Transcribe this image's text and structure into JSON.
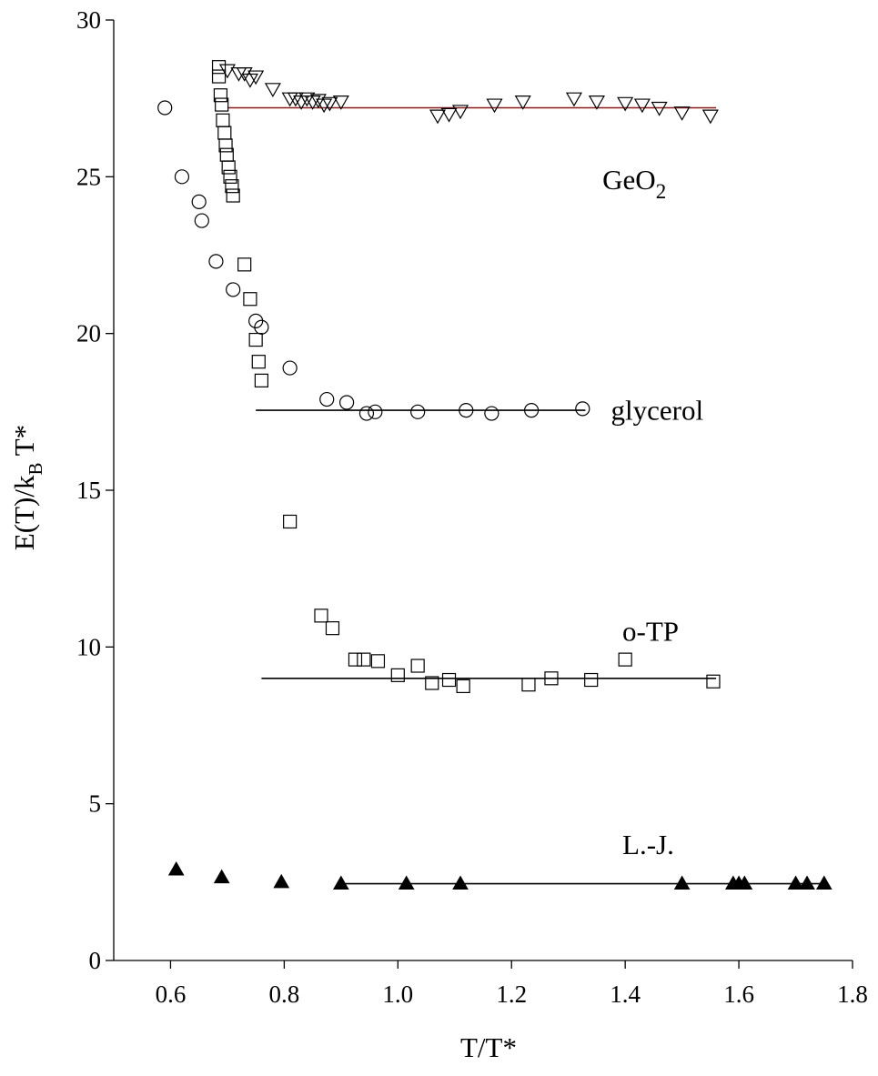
{
  "chart_data": {
    "type": "scatter",
    "title": "",
    "xlabel": "T/T*",
    "ylabel": "E(T)/k",
    "ylabel_sub": "B",
    "ylabel_tail": " T*",
    "xlim": [
      0.5,
      1.8
    ],
    "ylim": [
      0,
      30
    ],
    "xticks": [
      "0.6",
      "0.8",
      "1.0",
      "1.2",
      "1.4",
      "1.6",
      "1.8"
    ],
    "yticks": [
      "0",
      "5",
      "10",
      "15",
      "20",
      "25",
      "30"
    ],
    "grid": false,
    "series": [
      {
        "name": "GeO2",
        "label_main": "GeO",
        "label_sub": "2",
        "marker": "triangle-down-open",
        "fit": {
          "x": [
            0.7,
            1.56
          ],
          "y": 27.2,
          "color": "#8b1a1a"
        },
        "points": [
          [
            0.7,
            28.4
          ],
          [
            0.72,
            28.3
          ],
          [
            0.73,
            28.3
          ],
          [
            0.74,
            28.1
          ],
          [
            0.75,
            28.2
          ],
          [
            0.78,
            27.8
          ],
          [
            0.81,
            27.5
          ],
          [
            0.82,
            27.5
          ],
          [
            0.83,
            27.4
          ],
          [
            0.84,
            27.5
          ],
          [
            0.85,
            27.4
          ],
          [
            0.86,
            27.45
          ],
          [
            0.87,
            27.3
          ],
          [
            0.88,
            27.35
          ],
          [
            0.9,
            27.4
          ],
          [
            1.07,
            26.95
          ],
          [
            1.09,
            27.0
          ],
          [
            1.11,
            27.1
          ],
          [
            1.17,
            27.3
          ],
          [
            1.22,
            27.4
          ],
          [
            1.31,
            27.5
          ],
          [
            1.35,
            27.4
          ],
          [
            1.4,
            27.35
          ],
          [
            1.43,
            27.3
          ],
          [
            1.46,
            27.2
          ],
          [
            1.5,
            27.05
          ],
          [
            1.55,
            26.95
          ]
        ]
      },
      {
        "name": "glycerol",
        "label_main": "glycerol",
        "marker": "circle-open",
        "fit": {
          "x": [
            0.75,
            1.33
          ],
          "y": 17.55,
          "color": "#000000"
        },
        "points": [
          [
            0.59,
            27.2
          ],
          [
            0.62,
            25.0
          ],
          [
            0.65,
            24.2
          ],
          [
            0.655,
            23.6
          ],
          [
            0.68,
            22.3
          ],
          [
            0.71,
            21.4
          ],
          [
            0.75,
            20.4
          ],
          [
            0.76,
            20.2
          ],
          [
            0.81,
            18.9
          ],
          [
            0.875,
            17.9
          ],
          [
            0.91,
            17.8
          ],
          [
            0.945,
            17.45
          ],
          [
            0.96,
            17.5
          ],
          [
            1.035,
            17.5
          ],
          [
            1.12,
            17.55
          ],
          [
            1.165,
            17.45
          ],
          [
            1.235,
            17.55
          ],
          [
            1.325,
            17.6
          ]
        ]
      },
      {
        "name": "o-TP",
        "label_main": "o-TP",
        "marker": "square-open",
        "fit": {
          "x": [
            0.76,
            1.56
          ],
          "y": 9.0,
          "color": "#000000"
        },
        "points": [
          [
            0.685,
            28.5
          ],
          [
            0.685,
            28.2
          ],
          [
            0.688,
            27.6
          ],
          [
            0.69,
            27.3
          ],
          [
            0.692,
            26.8
          ],
          [
            0.695,
            26.4
          ],
          [
            0.697,
            26.0
          ],
          [
            0.699,
            25.7
          ],
          [
            0.702,
            25.3
          ],
          [
            0.705,
            25.0
          ],
          [
            0.708,
            24.7
          ],
          [
            0.71,
            24.4
          ],
          [
            0.73,
            22.2
          ],
          [
            0.74,
            21.1
          ],
          [
            0.75,
            19.8
          ],
          [
            0.755,
            19.1
          ],
          [
            0.76,
            18.5
          ],
          [
            0.81,
            14.0
          ],
          [
            0.865,
            11.0
          ],
          [
            0.885,
            10.6
          ],
          [
            0.925,
            9.6
          ],
          [
            0.94,
            9.6
          ],
          [
            0.965,
            9.55
          ],
          [
            1.0,
            9.1
          ],
          [
            1.035,
            9.4
          ],
          [
            1.06,
            8.85
          ],
          [
            1.09,
            8.95
          ],
          [
            1.115,
            8.75
          ],
          [
            1.23,
            8.8
          ],
          [
            1.27,
            9.0
          ],
          [
            1.34,
            8.95
          ],
          [
            1.4,
            9.6
          ],
          [
            1.555,
            8.9
          ]
        ]
      },
      {
        "name": "L.-J.",
        "label_main": "L.-J.",
        "marker": "triangle-up-filled",
        "fit": {
          "x": [
            0.9,
            1.75
          ],
          "y": 2.45,
          "color": "#000000"
        },
        "points": [
          [
            0.61,
            2.9
          ],
          [
            0.69,
            2.65
          ],
          [
            0.795,
            2.5
          ],
          [
            0.9,
            2.45
          ],
          [
            1.015,
            2.45
          ],
          [
            1.11,
            2.45
          ],
          [
            1.5,
            2.45
          ],
          [
            1.59,
            2.45
          ],
          [
            1.6,
            2.45
          ],
          [
            1.61,
            2.45
          ],
          [
            1.7,
            2.45
          ],
          [
            1.72,
            2.45
          ],
          [
            1.75,
            2.45
          ]
        ]
      }
    ]
  }
}
